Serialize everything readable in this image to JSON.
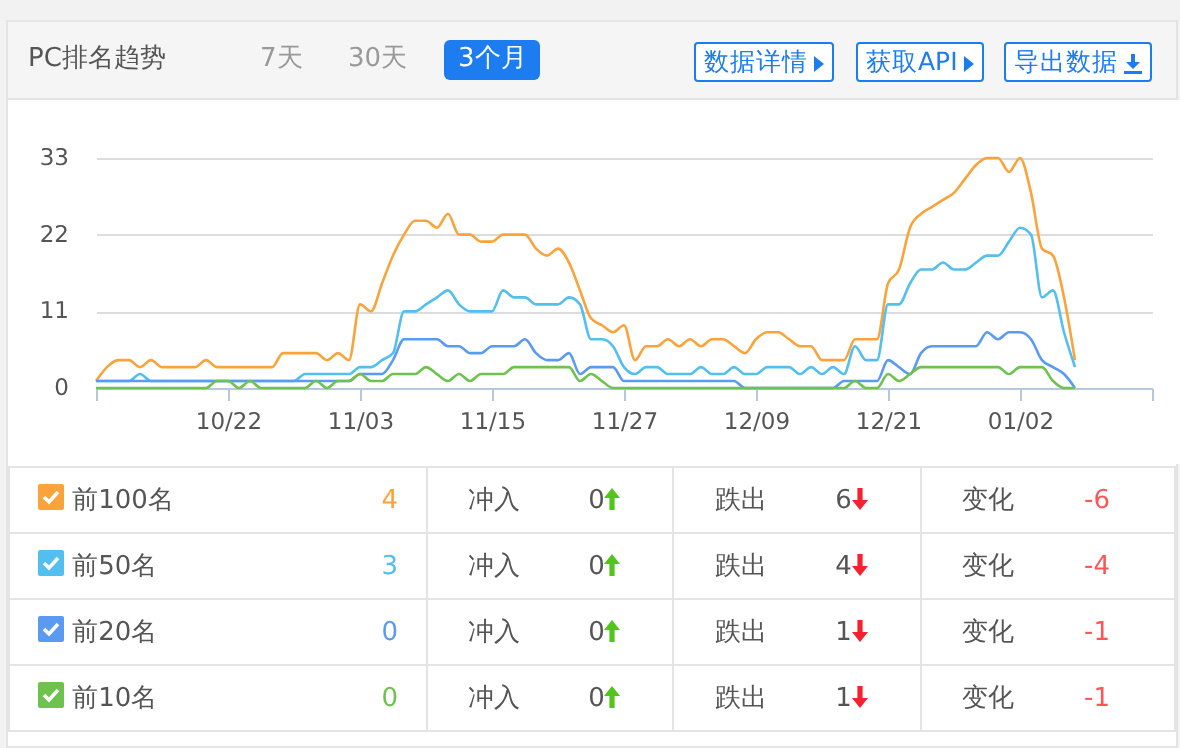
{
  "chart_data": {
    "type": "line",
    "title": "PC排名趋势",
    "annotations": [
      "7天",
      "30天",
      "3个月",
      "数据详情",
      "获取API",
      "导出数据",
      "4",
      "冲入",
      "0",
      "跌出",
      "6",
      "变化",
      "-6",
      "3",
      "冲入",
      "0",
      "跌出",
      "4",
      "变化",
      "-4",
      "0",
      "冲入",
      "0",
      "跌出",
      "1",
      "变化",
      "-1",
      "0",
      "冲入",
      "0",
      "跌出",
      "1",
      "变化",
      "-1"
    ],
    "categories": [
      null,
      null,
      null,
      null,
      null,
      null,
      null,
      null,
      null,
      null,
      null,
      null,
      "10/22",
      null,
      null,
      null,
      null,
      null,
      null,
      null,
      null,
      null,
      null,
      null,
      "11/03",
      null,
      null,
      null,
      null,
      null,
      null,
      null,
      null,
      null,
      null,
      null,
      "11/15",
      null,
      null,
      null,
      null,
      null,
      null,
      null,
      null,
      null,
      null,
      null,
      "11/27",
      null,
      null,
      null,
      null,
      null,
      null,
      null,
      null,
      null,
      null,
      null,
      "12/09",
      null,
      null,
      null,
      null,
      null,
      null,
      null,
      null,
      null,
      null,
      null,
      "12/21",
      null,
      null,
      null,
      null,
      null,
      null,
      null,
      null,
      null,
      null,
      null,
      "01/02",
      null,
      null,
      null,
      null,
      null,
      null,
      null,
      null,
      null,
      null,
      null,
      null
    ],
    "ylim": [
      0,
      33
    ],
    "yticks": [
      0,
      11,
      22,
      33
    ],
    "grid": "y",
    "legend": "bottom",
    "marker": "none",
    "line_style": "solid",
    "series": [
      {
        "name": "前100名",
        "color": "#f9a33a",
        "values": [
          1,
          3,
          4,
          4,
          3,
          4,
          3,
          3,
          3,
          3,
          4,
          3,
          3,
          3,
          3,
          3,
          3,
          5,
          5,
          5,
          5,
          4,
          5,
          4,
          12,
          11,
          15,
          19,
          22,
          24,
          24,
          23,
          25,
          22,
          22,
          21,
          21,
          22,
          22,
          22,
          20,
          19,
          20,
          18,
          14,
          10,
          9,
          8,
          9,
          4,
          6,
          6,
          7,
          6,
          7,
          6,
          7,
          7,
          6,
          5,
          7,
          8,
          8,
          7,
          6,
          6,
          4,
          4,
          4,
          7,
          7,
          7,
          15,
          17,
          23,
          25,
          26,
          27,
          28,
          30,
          32,
          33,
          33,
          31,
          33,
          28,
          20,
          19,
          13,
          4,
          null,
          null,
          null,
          null,
          null,
          null,
          null
        ]
      },
      {
        "name": "前50名",
        "color": "#52bfee",
        "values": [
          1,
          1,
          1,
          1,
          2,
          1,
          1,
          1,
          1,
          1,
          1,
          1,
          1,
          1,
          1,
          1,
          1,
          1,
          1,
          2,
          2,
          2,
          2,
          2,
          3,
          3,
          4,
          5,
          11,
          11,
          12,
          13,
          14,
          12,
          11,
          11,
          11,
          14,
          13,
          13,
          12,
          12,
          12,
          13,
          12,
          7,
          7,
          6,
          3,
          2,
          3,
          3,
          2,
          2,
          2,
          3,
          2,
          2,
          3,
          2,
          2,
          3,
          3,
          3,
          2,
          3,
          2,
          3,
          2,
          6,
          4,
          4,
          12,
          12,
          15,
          17,
          17,
          18,
          17,
          17,
          18,
          19,
          19,
          21,
          23,
          22,
          13,
          14,
          8,
          3,
          null,
          null,
          null,
          null,
          null,
          null,
          null
        ]
      },
      {
        "name": "前20名",
        "color": "#5a9af0",
        "values": [
          1,
          1,
          1,
          1,
          1,
          1,
          1,
          1,
          1,
          1,
          1,
          1,
          1,
          1,
          1,
          1,
          1,
          1,
          1,
          1,
          1,
          1,
          1,
          1,
          2,
          2,
          2,
          4,
          7,
          7,
          7,
          7,
          6,
          6,
          5,
          5,
          6,
          6,
          6,
          7,
          5,
          4,
          4,
          5,
          2,
          3,
          3,
          3,
          1,
          1,
          1,
          1,
          1,
          1,
          1,
          1,
          1,
          1,
          1,
          0,
          0,
          0,
          0,
          0,
          0,
          0,
          0,
          0,
          1,
          1,
          1,
          1,
          4,
          3,
          2,
          5,
          6,
          6,
          6,
          6,
          6,
          8,
          7,
          8,
          8,
          7,
          4,
          3,
          2,
          0,
          null,
          null,
          null,
          null,
          null,
          null,
          null
        ]
      },
      {
        "name": "前10名",
        "color": "#6ec24e",
        "values": [
          0,
          0,
          0,
          0,
          0,
          0,
          0,
          0,
          0,
          0,
          0,
          1,
          1,
          0,
          1,
          0,
          0,
          0,
          0,
          0,
          1,
          0,
          1,
          1,
          2,
          1,
          1,
          2,
          2,
          2,
          3,
          2,
          1,
          2,
          1,
          2,
          2,
          2,
          3,
          3,
          3,
          3,
          3,
          3,
          1,
          2,
          1,
          0,
          0,
          0,
          0,
          0,
          0,
          0,
          0,
          0,
          0,
          0,
          0,
          0,
          0,
          0,
          0,
          0,
          0,
          0,
          0,
          0,
          0,
          1,
          0,
          0,
          2,
          1,
          2,
          3,
          3,
          3,
          3,
          3,
          3,
          3,
          3,
          2,
          3,
          3,
          3,
          1,
          0,
          0,
          null,
          null,
          null,
          null,
          null,
          null,
          null
        ]
      }
    ]
  }
}
